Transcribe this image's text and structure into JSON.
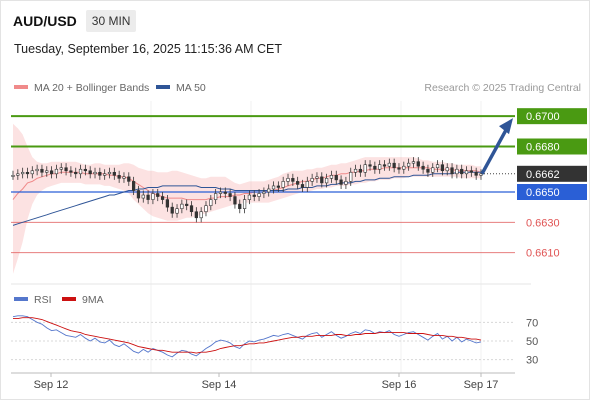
{
  "header": {
    "symbol": "AUD/USD",
    "timeframe": "30 MIN",
    "datetime": "Tuesday, September 16, 2025 11:15:36 AM CET"
  },
  "colors": {
    "bollinger": "#f08a8a",
    "ma50": "#2f5597",
    "green_level": "#4a9a12",
    "blue_level": "#2a5fd6",
    "red_level": "#e05454",
    "candle_up": "#ffffff",
    "candle_down": "#333333",
    "arrow": "#2f5597",
    "rsi": "#5577cc",
    "rsi_ma": "#cc1111",
    "current_price_bg": "#333333"
  },
  "chart_data": [
    {
      "type": "candlestick",
      "legend": [
        {
          "name": "MA 20 + Bollinger Bands",
          "color": "#f08a8a"
        },
        {
          "name": "MA 50",
          "color": "#2f5597"
        }
      ],
      "legend_position": "top-left",
      "source": "Research © 2025 Trading Central",
      "x_ticks": [
        "Sep 12",
        "Sep 14",
        "Sep 16",
        "Sep 17"
      ],
      "ylim": [
        0.659,
        0.671
      ],
      "current_price": "0.6662",
      "levels": [
        {
          "value": 0.67,
          "label": "0.6700",
          "kind": "resistance"
        },
        {
          "value": 0.668,
          "label": "0.6680",
          "kind": "resistance"
        },
        {
          "value": 0.665,
          "label": "0.6650",
          "kind": "pivot"
        },
        {
          "value": 0.663,
          "label": "0.6630",
          "kind": "support"
        },
        {
          "value": 0.661,
          "label": "0.6610",
          "kind": "support"
        }
      ],
      "arrow_target": 0.67,
      "close": [
        0.6661,
        0.6662,
        0.6663,
        0.6662,
        0.6664,
        0.6665,
        0.6663,
        0.6664,
        0.6662,
        0.6665,
        0.6666,
        0.6664,
        0.6663,
        0.6662,
        0.6665,
        0.6664,
        0.6662,
        0.6663,
        0.6661,
        0.6662,
        0.6663,
        0.6661,
        0.6659,
        0.666,
        0.6657,
        0.6651,
        0.6646,
        0.6648,
        0.6645,
        0.6649,
        0.6647,
        0.6645,
        0.664,
        0.6636,
        0.6639,
        0.6642,
        0.6641,
        0.6637,
        0.6633,
        0.6637,
        0.6641,
        0.6645,
        0.6649,
        0.665,
        0.6649,
        0.6647,
        0.6642,
        0.6639,
        0.6645,
        0.6648,
        0.6647,
        0.6649,
        0.665,
        0.6652,
        0.6654,
        0.6653,
        0.6657,
        0.6659,
        0.6657,
        0.6655,
        0.6653,
        0.6657,
        0.6659,
        0.666,
        0.6656,
        0.6659,
        0.6661,
        0.6658,
        0.6655,
        0.6657,
        0.6663,
        0.6665,
        0.6663,
        0.6668,
        0.6667,
        0.6665,
        0.6668,
        0.6667,
        0.6669,
        0.6666,
        0.6665,
        0.6667,
        0.6669,
        0.667,
        0.6667,
        0.6665,
        0.6663,
        0.6666,
        0.6668,
        0.6664,
        0.6666,
        0.6662,
        0.6665,
        0.6662,
        0.6664,
        0.6663,
        0.6661,
        0.6662
      ],
      "bollinger_upper": [
        0.6695,
        0.6692,
        0.6688,
        0.668,
        0.6673,
        0.667,
        0.6669,
        0.6669,
        0.667,
        0.667,
        0.667,
        0.667,
        0.667,
        0.667,
        0.6669,
        0.6668,
        0.6668,
        0.6669,
        0.6669,
        0.6668,
        0.6668,
        0.6668,
        0.6668,
        0.6669,
        0.6669,
        0.6668,
        0.6666,
        0.6665,
        0.6664,
        0.6664,
        0.6663,
        0.6663,
        0.6663,
        0.6664,
        0.6664,
        0.6663,
        0.6662,
        0.6661,
        0.666,
        0.6659,
        0.6659,
        0.666,
        0.666,
        0.666,
        0.666,
        0.6658,
        0.6656,
        0.6655,
        0.6656,
        0.6657,
        0.6657,
        0.6657,
        0.6657,
        0.6658,
        0.6659,
        0.666,
        0.6662,
        0.6663,
        0.6664,
        0.6664,
        0.6664,
        0.6665,
        0.6665,
        0.6666,
        0.6666,
        0.6667,
        0.6668,
        0.6668,
        0.6669,
        0.6669,
        0.667,
        0.6671,
        0.6672,
        0.6673,
        0.6673,
        0.6673,
        0.6673,
        0.6673,
        0.6673,
        0.6673,
        0.6673,
        0.6673,
        0.6673,
        0.6673,
        0.6672,
        0.6671,
        0.6671,
        0.667,
        0.667,
        0.667,
        0.6669,
        0.6669,
        0.6668,
        0.6668,
        0.6668,
        0.6668,
        0.6667,
        0.6667
      ],
      "bollinger_lower": [
        0.6596,
        0.6606,
        0.6617,
        0.6632,
        0.6642,
        0.6648,
        0.6651,
        0.6653,
        0.6654,
        0.6655,
        0.6656,
        0.6656,
        0.6656,
        0.6656,
        0.6656,
        0.6655,
        0.6655,
        0.6655,
        0.6655,
        0.6654,
        0.6654,
        0.6653,
        0.6652,
        0.6651,
        0.6649,
        0.6645,
        0.6642,
        0.6639,
        0.6636,
        0.6634,
        0.6633,
        0.6632,
        0.6631,
        0.6631,
        0.6631,
        0.6632,
        0.6633,
        0.6633,
        0.6634,
        0.6635,
        0.6636,
        0.6637,
        0.6638,
        0.6639,
        0.664,
        0.6641,
        0.6642,
        0.6642,
        0.6643,
        0.6643,
        0.6643,
        0.6643,
        0.6643,
        0.6643,
        0.6644,
        0.6645,
        0.6646,
        0.6647,
        0.6648,
        0.6649,
        0.665,
        0.665,
        0.6651,
        0.6652,
        0.6652,
        0.6653,
        0.6653,
        0.6654,
        0.6654,
        0.6654,
        0.6655,
        0.6655,
        0.6656,
        0.6656,
        0.6657,
        0.6657,
        0.6658,
        0.6658,
        0.6658,
        0.6659,
        0.6659,
        0.6659,
        0.666,
        0.666,
        0.666,
        0.666,
        0.666,
        0.666,
        0.666,
        0.666,
        0.666,
        0.666,
        0.666,
        0.6659,
        0.6659,
        0.6659,
        0.6659,
        0.6659
      ],
      "ma20": [
        0.6645,
        0.6649,
        0.6652,
        0.6656,
        0.6657,
        0.6659,
        0.666,
        0.6661,
        0.6662,
        0.6662,
        0.6663,
        0.6663,
        0.6663,
        0.6663,
        0.6663,
        0.6662,
        0.6662,
        0.6662,
        0.6662,
        0.6662,
        0.6661,
        0.6661,
        0.666,
        0.666,
        0.6659,
        0.6657,
        0.6655,
        0.6653,
        0.6651,
        0.6649,
        0.6648,
        0.6647,
        0.6646,
        0.6646,
        0.6646,
        0.6646,
        0.6645,
        0.6645,
        0.6645,
        0.6645,
        0.6645,
        0.6646,
        0.6646,
        0.6647,
        0.6647,
        0.6647,
        0.6648,
        0.6648,
        0.6649,
        0.6649,
        0.665,
        0.665,
        0.665,
        0.6651,
        0.6651,
        0.6652,
        0.6653,
        0.6654,
        0.6655,
        0.6656,
        0.6657,
        0.6657,
        0.6658,
        0.6659,
        0.6659,
        0.666,
        0.6661,
        0.6661,
        0.6662,
        0.6662,
        0.6663,
        0.6663,
        0.6664,
        0.6664,
        0.6665,
        0.6665,
        0.6665,
        0.6666,
        0.6666,
        0.6666,
        0.6666,
        0.6666,
        0.6666,
        0.6666,
        0.6666,
        0.6666,
        0.6666,
        0.6665,
        0.6665,
        0.6665,
        0.6665,
        0.6665,
        0.6664,
        0.6664,
        0.6664,
        0.6664,
        0.6664,
        0.6663
      ],
      "ma50": [
        0.6628,
        0.6629,
        0.663,
        0.6631,
        0.6632,
        0.6633,
        0.6634,
        0.6635,
        0.6636,
        0.6637,
        0.6638,
        0.6639,
        0.664,
        0.6641,
        0.6642,
        0.6643,
        0.6644,
        0.6645,
        0.6646,
        0.6647,
        0.6648,
        0.6648,
        0.6649,
        0.665,
        0.6651,
        0.6651,
        0.6652,
        0.6652,
        0.6653,
        0.6653,
        0.6653,
        0.6654,
        0.6654,
        0.6654,
        0.6654,
        0.6654,
        0.6654,
        0.6654,
        0.6654,
        0.6653,
        0.6653,
        0.6653,
        0.6653,
        0.6652,
        0.6652,
        0.6652,
        0.6651,
        0.6651,
        0.6651,
        0.6651,
        0.6651,
        0.6651,
        0.6651,
        0.6651,
        0.6651,
        0.6651,
        0.6651,
        0.6652,
        0.6652,
        0.6652,
        0.6653,
        0.6653,
        0.6653,
        0.6654,
        0.6654,
        0.6654,
        0.6655,
        0.6655,
        0.6656,
        0.6656,
        0.6656,
        0.6657,
        0.6657,
        0.6658,
        0.6658,
        0.6658,
        0.6659,
        0.6659,
        0.6659,
        0.666,
        0.666,
        0.666,
        0.666,
        0.6661,
        0.6661,
        0.6661,
        0.6661,
        0.6662,
        0.6662,
        0.6662,
        0.6662,
        0.6662,
        0.6663,
        0.6663,
        0.6663,
        0.6663,
        0.6663,
        0.6663
      ]
    },
    {
      "type": "line",
      "legend": [
        {
          "name": "RSI",
          "color": "#5577cc"
        },
        {
          "name": "9MA",
          "color": "#cc1111"
        }
      ],
      "legend_position": "top-left",
      "ylim": [
        20,
        80
      ],
      "y_ticks": [
        70,
        50,
        30
      ],
      "rsi": [
        76,
        77,
        77,
        76,
        73,
        70,
        68,
        64,
        61,
        62,
        59,
        56,
        55,
        54,
        57,
        53,
        50,
        53,
        49,
        48,
        51,
        46,
        44,
        47,
        43,
        39,
        37,
        41,
        38,
        42,
        40,
        38,
        35,
        33,
        37,
        40,
        39,
        36,
        34,
        38,
        42,
        45,
        49,
        51,
        50,
        48,
        44,
        42,
        47,
        50,
        49,
        51,
        52,
        54,
        56,
        55,
        57,
        58,
        56,
        54,
        52,
        56,
        58,
        59,
        54,
        57,
        60,
        56,
        53,
        55,
        58,
        60,
        58,
        62,
        61,
        58,
        60,
        59,
        61,
        57,
        55,
        57,
        59,
        60,
        57,
        54,
        51,
        55,
        58,
        52,
        55,
        50,
        54,
        49,
        52,
        50,
        48,
        49
      ],
      "rsi_ma": [
        74,
        74,
        75,
        75,
        75,
        74,
        73,
        71,
        69,
        67,
        65,
        63,
        61,
        60,
        59,
        57,
        56,
        55,
        54,
        53,
        52,
        51,
        50,
        49,
        48,
        46,
        44,
        43,
        42,
        41,
        40,
        40,
        39,
        38,
        38,
        38,
        38,
        38,
        37,
        38,
        38,
        39,
        40,
        42,
        43,
        44,
        45,
        45,
        46,
        47,
        47,
        48,
        48,
        49,
        50,
        51,
        52,
        53,
        54,
        54,
        55,
        55,
        55,
        56,
        56,
        56,
        56,
        57,
        57,
        56,
        56,
        57,
        57,
        58,
        58,
        58,
        59,
        59,
        59,
        59,
        59,
        59,
        58,
        58,
        58,
        58,
        57,
        56,
        56,
        56,
        55,
        55,
        54,
        54,
        53,
        52,
        52,
        51
      ]
    }
  ]
}
